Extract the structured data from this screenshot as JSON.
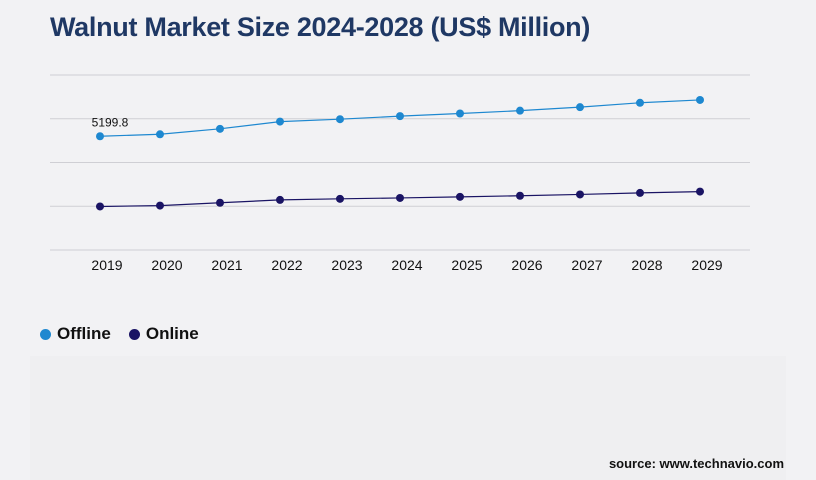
{
  "title": "Walnut Market Size 2024-2028 (US$ Million)",
  "source": "source: www.technavio.com",
  "legend": [
    {
      "name": "Offline",
      "color": "#1e88d0"
    },
    {
      "name": "Online",
      "color": "#1a1464"
    }
  ],
  "chart_data": {
    "type": "line",
    "categories": [
      "2019",
      "2020",
      "2021",
      "2022",
      "2023",
      "2024",
      "2025",
      "2026",
      "2027",
      "2028",
      "2029"
    ],
    "series": [
      {
        "name": "Offline",
        "color": "#1e88d0",
        "values": [
          5199.8,
          5290,
          5540,
          5870,
          5980,
          6120,
          6240,
          6370,
          6530,
          6730,
          6860
        ]
      },
      {
        "name": "Online",
        "color": "#1a1464",
        "values": [
          1990,
          2030,
          2160,
          2290,
          2340,
          2380,
          2430,
          2480,
          2540,
          2610,
          2670
        ]
      }
    ],
    "data_labels": [
      {
        "series": 0,
        "index": 0,
        "text": "5199.8"
      }
    ],
    "ylim": [
      0,
      8000
    ],
    "grid": true,
    "legend_position": "bottom-left"
  }
}
